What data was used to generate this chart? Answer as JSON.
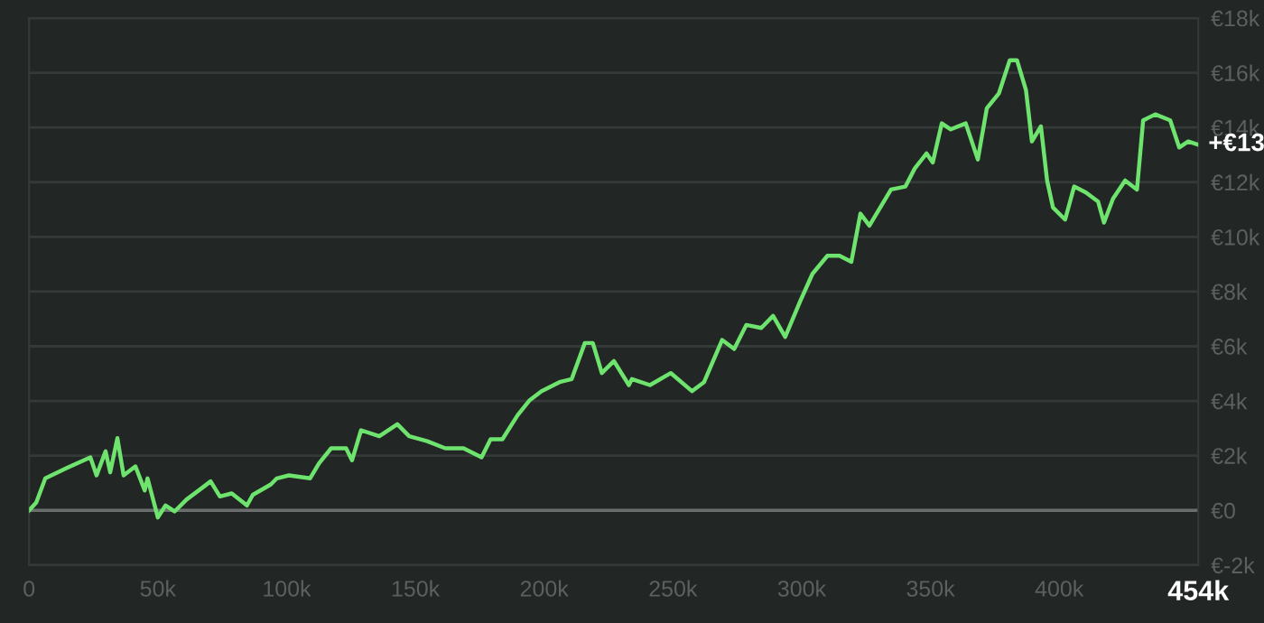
{
  "chart_data": {
    "type": "line",
    "x": [
      0,
      2800,
      6300,
      14500,
      23800,
      26200,
      29700,
      31500,
      34300,
      36700,
      41300,
      44900,
      46000,
      50000,
      53000,
      56500,
      61200,
      65900,
      70500,
      74100,
      78700,
      84600,
      86900,
      93900,
      96200,
      100900,
      109100,
      112600,
      117300,
      123100,
      125400,
      128900,
      136000,
      143000,
      147600,
      154600,
      161600,
      168700,
      175700,
      179200,
      183800,
      189700,
      194400,
      199000,
      206000,
      210700,
      215800,
      218900,
      222400,
      227100,
      232900,
      234100,
      241100,
      249200,
      257400,
      262100,
      269100,
      273800,
      278500,
      284300,
      288900,
      293600,
      299500,
      304200,
      310000,
      314700,
      319300,
      322800,
      326300,
      334700,
      340300,
      343900,
      348500,
      350900,
      354400,
      357900,
      363700,
      368400,
      371900,
      376600,
      380800,
      383600,
      387100,
      389400,
      392900,
      395300,
      397600,
      402300,
      405800,
      410400,
      415100,
      417400,
      420900,
      425600,
      430200,
      432600,
      437300,
      443100,
      446600,
      450100,
      453600
    ],
    "series": [
      {
        "color": "#6ee46e",
        "values": [
          0,
          290,
          1170,
          1540,
          1940,
          1280,
          2160,
          1390,
          2640,
          1280,
          1610,
          730,
          1170,
          -260,
          180,
          -40,
          400,
          730,
          1060,
          510,
          620,
          180,
          570,
          950,
          1170,
          1280,
          1170,
          1720,
          2270,
          2270,
          1830,
          2930,
          2710,
          3150,
          2710,
          2530,
          2270,
          2270,
          1940,
          2600,
          2600,
          3480,
          4030,
          4360,
          4690,
          4800,
          6120,
          6120,
          5020,
          5460,
          4580,
          4800,
          4580,
          5020,
          4360,
          4690,
          6230,
          5900,
          6780,
          6670,
          7110,
          6340,
          7660,
          8650,
          9310,
          9310,
          9090,
          10850,
          10410,
          11730,
          11840,
          12500,
          13050,
          12720,
          14150,
          13930,
          14150,
          12830,
          14700,
          15250,
          16460,
          16460,
          15360,
          13490,
          14040,
          12060,
          11070,
          10630,
          11840,
          11620,
          11290,
          10520,
          11400,
          12060,
          11730,
          14260,
          14480,
          14260,
          13270,
          13490,
          13380
        ]
      }
    ],
    "xlim": [
      0,
      454000
    ],
    "xticks": [
      0,
      {
        "value": 50000,
        "label": "50k"
      },
      {
        "value": 100000,
        "label": "100k"
      },
      {
        "value": 150000,
        "label": "150k"
      },
      {
        "value": 200000,
        "label": "200k"
      },
      {
        "value": 250000,
        "label": "250k"
      },
      {
        "value": 300000,
        "label": "300k"
      },
      {
        "value": 350000,
        "label": "350k"
      },
      {
        "value": 400000,
        "label": "400k"
      },
      {
        "value": 454000,
        "label": "454k"
      }
    ],
    "ylim": [
      -2000,
      18000
    ],
    "yticks": [
      {
        "value": -2000,
        "label": "€-2k"
      },
      {
        "value": 0,
        "label": "€0"
      },
      {
        "value": 2000,
        "label": "€2k"
      },
      {
        "value": 4000,
        "label": "€4k"
      },
      {
        "value": 6000,
        "label": "€6k"
      },
      {
        "value": 8000,
        "label": "€8k"
      },
      {
        "value": 10000,
        "label": "€10k"
      },
      {
        "value": 12000,
        "label": "€12k"
      },
      {
        "value": 14000,
        "label": "€14k"
      },
      {
        "value": 16000,
        "label": "€16k"
      },
      {
        "value": 18000,
        "label": "€18k"
      }
    ],
    "ref_lines": [
      {
        "axis": "y",
        "value": 0,
        "color": "#6a6e6c"
      }
    ],
    "annotations": [
      {
        "text": "+€13",
        "x": 454000,
        "y": 13380
      }
    ],
    "grid": "y",
    "marker": "none",
    "line_style": "solid",
    "legend": false
  }
}
